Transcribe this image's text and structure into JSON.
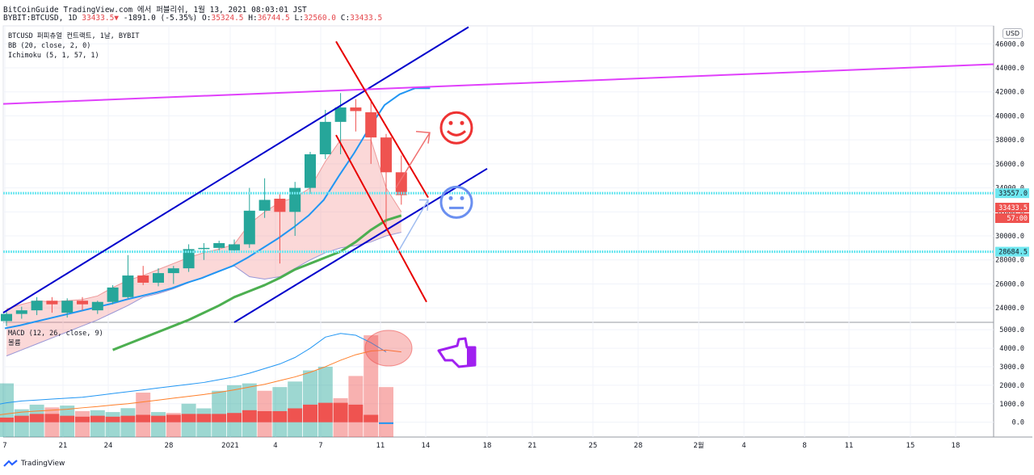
{
  "header": {
    "line1": "BitCoinGuide TradingView.com 에서 퍼블리쉬, 1월 13, 2021 08:03:01 JST",
    "symbol": "BYBIT:BTCUSD, 1D",
    "last": "33433.5",
    "change": "-1891.0 (-5.35%)",
    "o_label": "O:",
    "o_val": "35324.5",
    "h_label": "H:",
    "h_val": "36744.5",
    "l_label": "L:",
    "l_val": "32560.0",
    "c_label": "C:",
    "c_val": "33433.5"
  },
  "legend": {
    "title": "BTCUSD 퍼피츄얼 컨트랙트, 1날, BYBIT",
    "bb": "BB (20, close, 2, 0)",
    "ichimoku": "Ichimoku (5, 1, 57, 1)",
    "macd": "MACD (12, 26, close, 9)",
    "macd_sub": "볼륨"
  },
  "currency": "USD",
  "footer": {
    "brand": "TradingView"
  },
  "price_badges": {
    "resistance": "33557.0",
    "support": "28684.5",
    "last": "33433.5",
    "timer": "57:00"
  },
  "colors": {
    "up": "#26a69a",
    "down": "#ef5350",
    "bb_mid": "#2196f3",
    "ichimoku": "#4caf50",
    "channel": "#0000cc",
    "pink_line": "#e040fb",
    "red_lines": "#e80000",
    "hline": "#6ee7f0",
    "emoji_happy": "#ee3333",
    "emoji_neutral": "#6a8ff0",
    "hand": "#a020f0"
  },
  "chart_data": [
    {
      "type": "candlestick",
      "title": "BTCUSD 퍼피츄얼 컨트랙트, 1날, BYBIT",
      "ylim": [
        22800,
        47500
      ],
      "yticks": [
        24000,
        26000,
        28000,
        30000,
        32000,
        34000,
        36000,
        38000,
        40000,
        42000,
        44000,
        46000
      ],
      "ytick_labels": [
        "24000.0",
        "26000.0",
        "28000.0",
        "30000.0",
        "32000.0",
        "34000.0",
        "36000.0",
        "38000.0",
        "40000.0",
        "42000.0",
        "44000.0",
        "46000.0"
      ],
      "xticks": [
        "7",
        "21",
        "24",
        "28",
        "2021",
        "4",
        "7",
        "11",
        "14",
        "18",
        "21",
        "25",
        "28",
        "2월",
        "4",
        "8",
        "11",
        "15",
        "18"
      ],
      "candles": [
        {
          "o": 22900,
          "h": 23800,
          "l": 22500,
          "c": 23500
        },
        {
          "o": 23500,
          "h": 24100,
          "l": 23100,
          "c": 23800
        },
        {
          "o": 23800,
          "h": 24900,
          "l": 23400,
          "c": 24600
        },
        {
          "o": 24600,
          "h": 24900,
          "l": 23600,
          "c": 24300
        },
        {
          "o": 23600,
          "h": 24800,
          "l": 23200,
          "c": 24600
        },
        {
          "o": 24600,
          "h": 24900,
          "l": 23800,
          "c": 24300
        },
        {
          "o": 23800,
          "h": 24600,
          "l": 23500,
          "c": 24500
        },
        {
          "o": 24500,
          "h": 25900,
          "l": 24300,
          "c": 25700
        },
        {
          "o": 24900,
          "h": 28400,
          "l": 24800,
          "c": 26700
        },
        {
          "o": 26700,
          "h": 27500,
          "l": 25900,
          "c": 26100
        },
        {
          "o": 26100,
          "h": 27300,
          "l": 25800,
          "c": 26900
        },
        {
          "o": 26900,
          "h": 27500,
          "l": 26000,
          "c": 27300
        },
        {
          "o": 27300,
          "h": 29300,
          "l": 27000,
          "c": 28900
        },
        {
          "o": 28900,
          "h": 29400,
          "l": 28000,
          "c": 29000
        },
        {
          "o": 29000,
          "h": 29600,
          "l": 28800,
          "c": 29400
        },
        {
          "o": 28800,
          "h": 29700,
          "l": 28600,
          "c": 29300
        },
        {
          "o": 29300,
          "h": 34000,
          "l": 29000,
          "c": 32100
        },
        {
          "o": 32100,
          "h": 34800,
          "l": 31500,
          "c": 33000
        },
        {
          "o": 33100,
          "h": 33600,
          "l": 27700,
          "c": 32000
        },
        {
          "o": 32000,
          "h": 34500,
          "l": 30000,
          "c": 34000
        },
        {
          "o": 34000,
          "h": 37000,
          "l": 33500,
          "c": 36800
        },
        {
          "o": 36800,
          "h": 40500,
          "l": 36400,
          "c": 39500
        },
        {
          "o": 39500,
          "h": 41900,
          "l": 36800,
          "c": 40700
        },
        {
          "o": 40700,
          "h": 41400,
          "l": 38700,
          "c": 40400
        },
        {
          "o": 40300,
          "h": 41400,
          "l": 36000,
          "c": 38200
        },
        {
          "o": 38200,
          "h": 38500,
          "l": 30500,
          "c": 35300
        },
        {
          "o": 35300,
          "h": 36700,
          "l": 32600,
          "c": 33400
        }
      ],
      "bb_basis": [
        22300,
        22550,
        22850,
        23150,
        23450,
        23750,
        24050,
        24350,
        24700,
        25000,
        25300,
        25650,
        26100,
        26500,
        27000,
        27500,
        28200,
        29000,
        29800,
        30700,
        31700,
        33000,
        35000,
        36900,
        39000,
        40900,
        41800,
        42300,
        42300
      ],
      "ichimoku_line": [
        20500,
        21000,
        21500,
        22000,
        22500,
        23000,
        23600,
        24200,
        24900,
        25400,
        25900,
        26500,
        27200,
        27700,
        28200,
        28700,
        29500,
        30500,
        31300,
        31700
      ],
      "span_upper": [
        23900,
        24300,
        24600,
        24500,
        24600,
        24700,
        25000,
        25700,
        26300,
        26700,
        27200,
        27700,
        28200,
        28600,
        28900,
        29300,
        31000,
        32000,
        32800,
        33200,
        34000,
        36200,
        38000,
        38000,
        38000,
        34000,
        32000
      ],
      "span_lower": [
        20000,
        20500,
        21000,
        21500,
        22000,
        22500,
        23000,
        23600,
        24200,
        24900,
        25200,
        25600,
        26100,
        26600,
        27100,
        27500,
        26600,
        26400,
        26600,
        27300,
        28000,
        28600,
        29000,
        29200,
        29500,
        30000,
        30300
      ],
      "horizontal_levels": [
        33557.0,
        28684.5
      ],
      "current_price": 33433.5
    },
    {
      "type": "bar",
      "title": "MACD (12, 26, close, 9)",
      "ylim": [
        -800,
        5400
      ],
      "yticks": [
        0,
        1000,
        2000,
        3000,
        4000,
        5000
      ],
      "ytick_labels": [
        "0.0",
        "1000.0",
        "2000.0",
        "3000.0",
        "4000.0",
        "5000.0"
      ],
      "histogram_volume": [
        2100,
        700,
        950,
        800,
        900,
        600,
        650,
        550,
        760,
        1600,
        550,
        500,
        1000,
        750,
        1700,
        2000,
        2100,
        1700,
        1900,
        2200,
        2800,
        3000,
        1300,
        2500,
        4700,
        1900
      ],
      "histogram_volume_colors": [
        "u",
        "u",
        "u",
        "d",
        "u",
        "d",
        "u",
        "u",
        "u",
        "d",
        "u",
        "d",
        "u",
        "u",
        "u",
        "u",
        "u",
        "d",
        "u",
        "u",
        "u",
        "u",
        "d",
        "d",
        "d",
        "d"
      ],
      "histogram_red": [
        250,
        350,
        450,
        450,
        350,
        300,
        350,
        300,
        350,
        400,
        350,
        400,
        450,
        450,
        450,
        500,
        650,
        600,
        600,
        750,
        950,
        1050,
        1050,
        950,
        400,
        0
      ],
      "macd_line": [
        900,
        1050,
        1150,
        1200,
        1250,
        1300,
        1350,
        1450,
        1550,
        1650,
        1750,
        1850,
        1950,
        2050,
        2150,
        2300,
        2450,
        2650,
        2900,
        3150,
        3500,
        4000,
        4600,
        4800,
        4700,
        4300,
        3800
      ],
      "signal_line": [
        350,
        450,
        550,
        600,
        650,
        700,
        780,
        850,
        930,
        1000,
        1100,
        1200,
        1300,
        1400,
        1500,
        1620,
        1750,
        1900,
        2050,
        2250,
        2450,
        2700,
        3000,
        3350,
        3650,
        3850,
        3900,
        3800
      ]
    }
  ]
}
